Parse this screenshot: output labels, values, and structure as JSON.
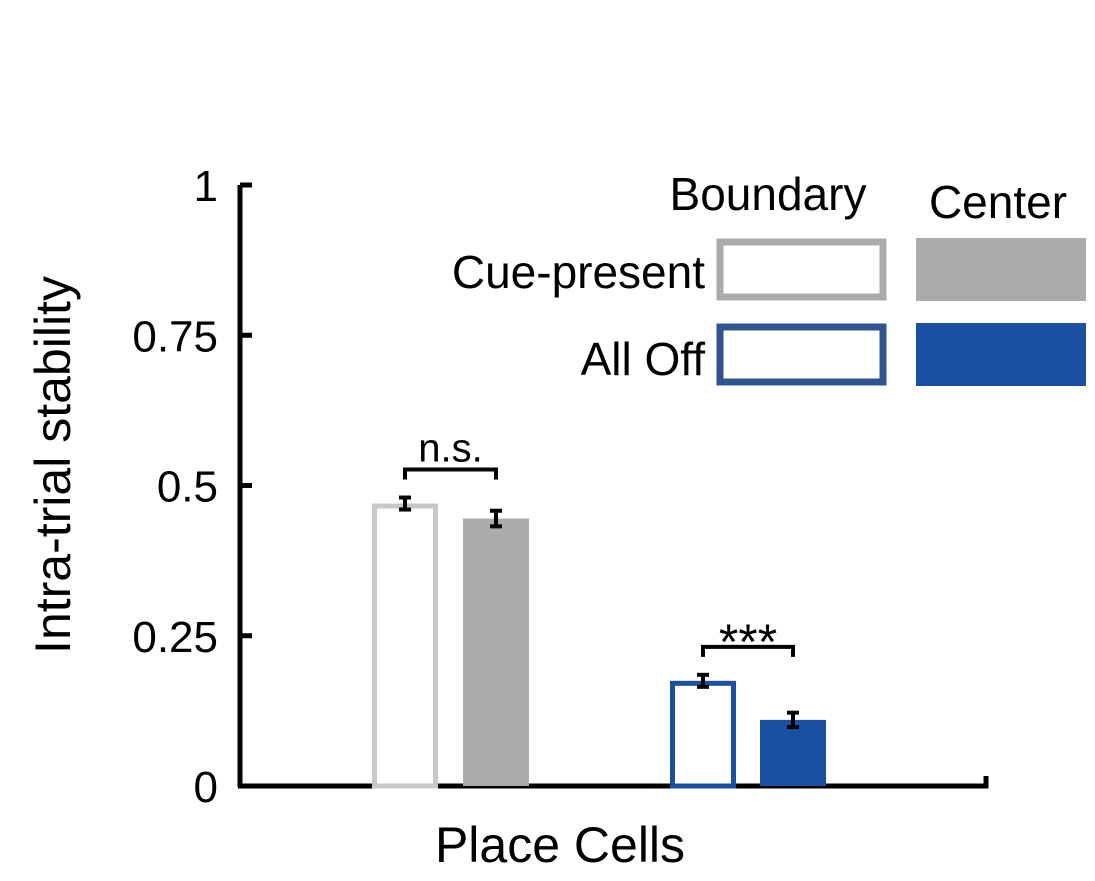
{
  "chart_data": {
    "type": "bar",
    "xlabel": "Place Cells",
    "ylabel": "Intra-trial stability",
    "ylim": [
      0,
      1
    ],
    "yticks": [
      {
        "value": 0,
        "label": "0"
      },
      {
        "value": 0.25,
        "label": "0.25"
      },
      {
        "value": 0.5,
        "label": "0.5"
      },
      {
        "value": 0.75,
        "label": "0.75"
      },
      {
        "value": 1,
        "label": "1"
      }
    ],
    "grid": false,
    "legend": {
      "placement": "top-right",
      "columns": [
        "Boundary",
        "Center"
      ],
      "rows": [
        "Cue-present",
        "All Off"
      ]
    },
    "series": [
      {
        "name": "Cue-present Boundary",
        "condition": "Cue-present",
        "location": "Boundary",
        "value": 0.47,
        "error": 0.01,
        "color": "#c8c8c8",
        "filled": false
      },
      {
        "name": "Cue-present Center",
        "condition": "Cue-present",
        "location": "Center",
        "value": 0.445,
        "error": 0.013,
        "color": "#ababab",
        "filled": true
      },
      {
        "name": "All Off Boundary",
        "condition": "All Off",
        "location": "Boundary",
        "value": 0.175,
        "error": 0.01,
        "color": "#1a50a3",
        "filled": false
      },
      {
        "name": "All Off Center",
        "condition": "All Off",
        "location": "Center",
        "value": 0.11,
        "error": 0.012,
        "color": "#1a50a3",
        "filled": true
      }
    ],
    "annotations": [
      {
        "text": "n.s.",
        "between": [
          0,
          1
        ]
      },
      {
        "text": "***",
        "between": [
          2,
          3
        ]
      }
    ]
  }
}
